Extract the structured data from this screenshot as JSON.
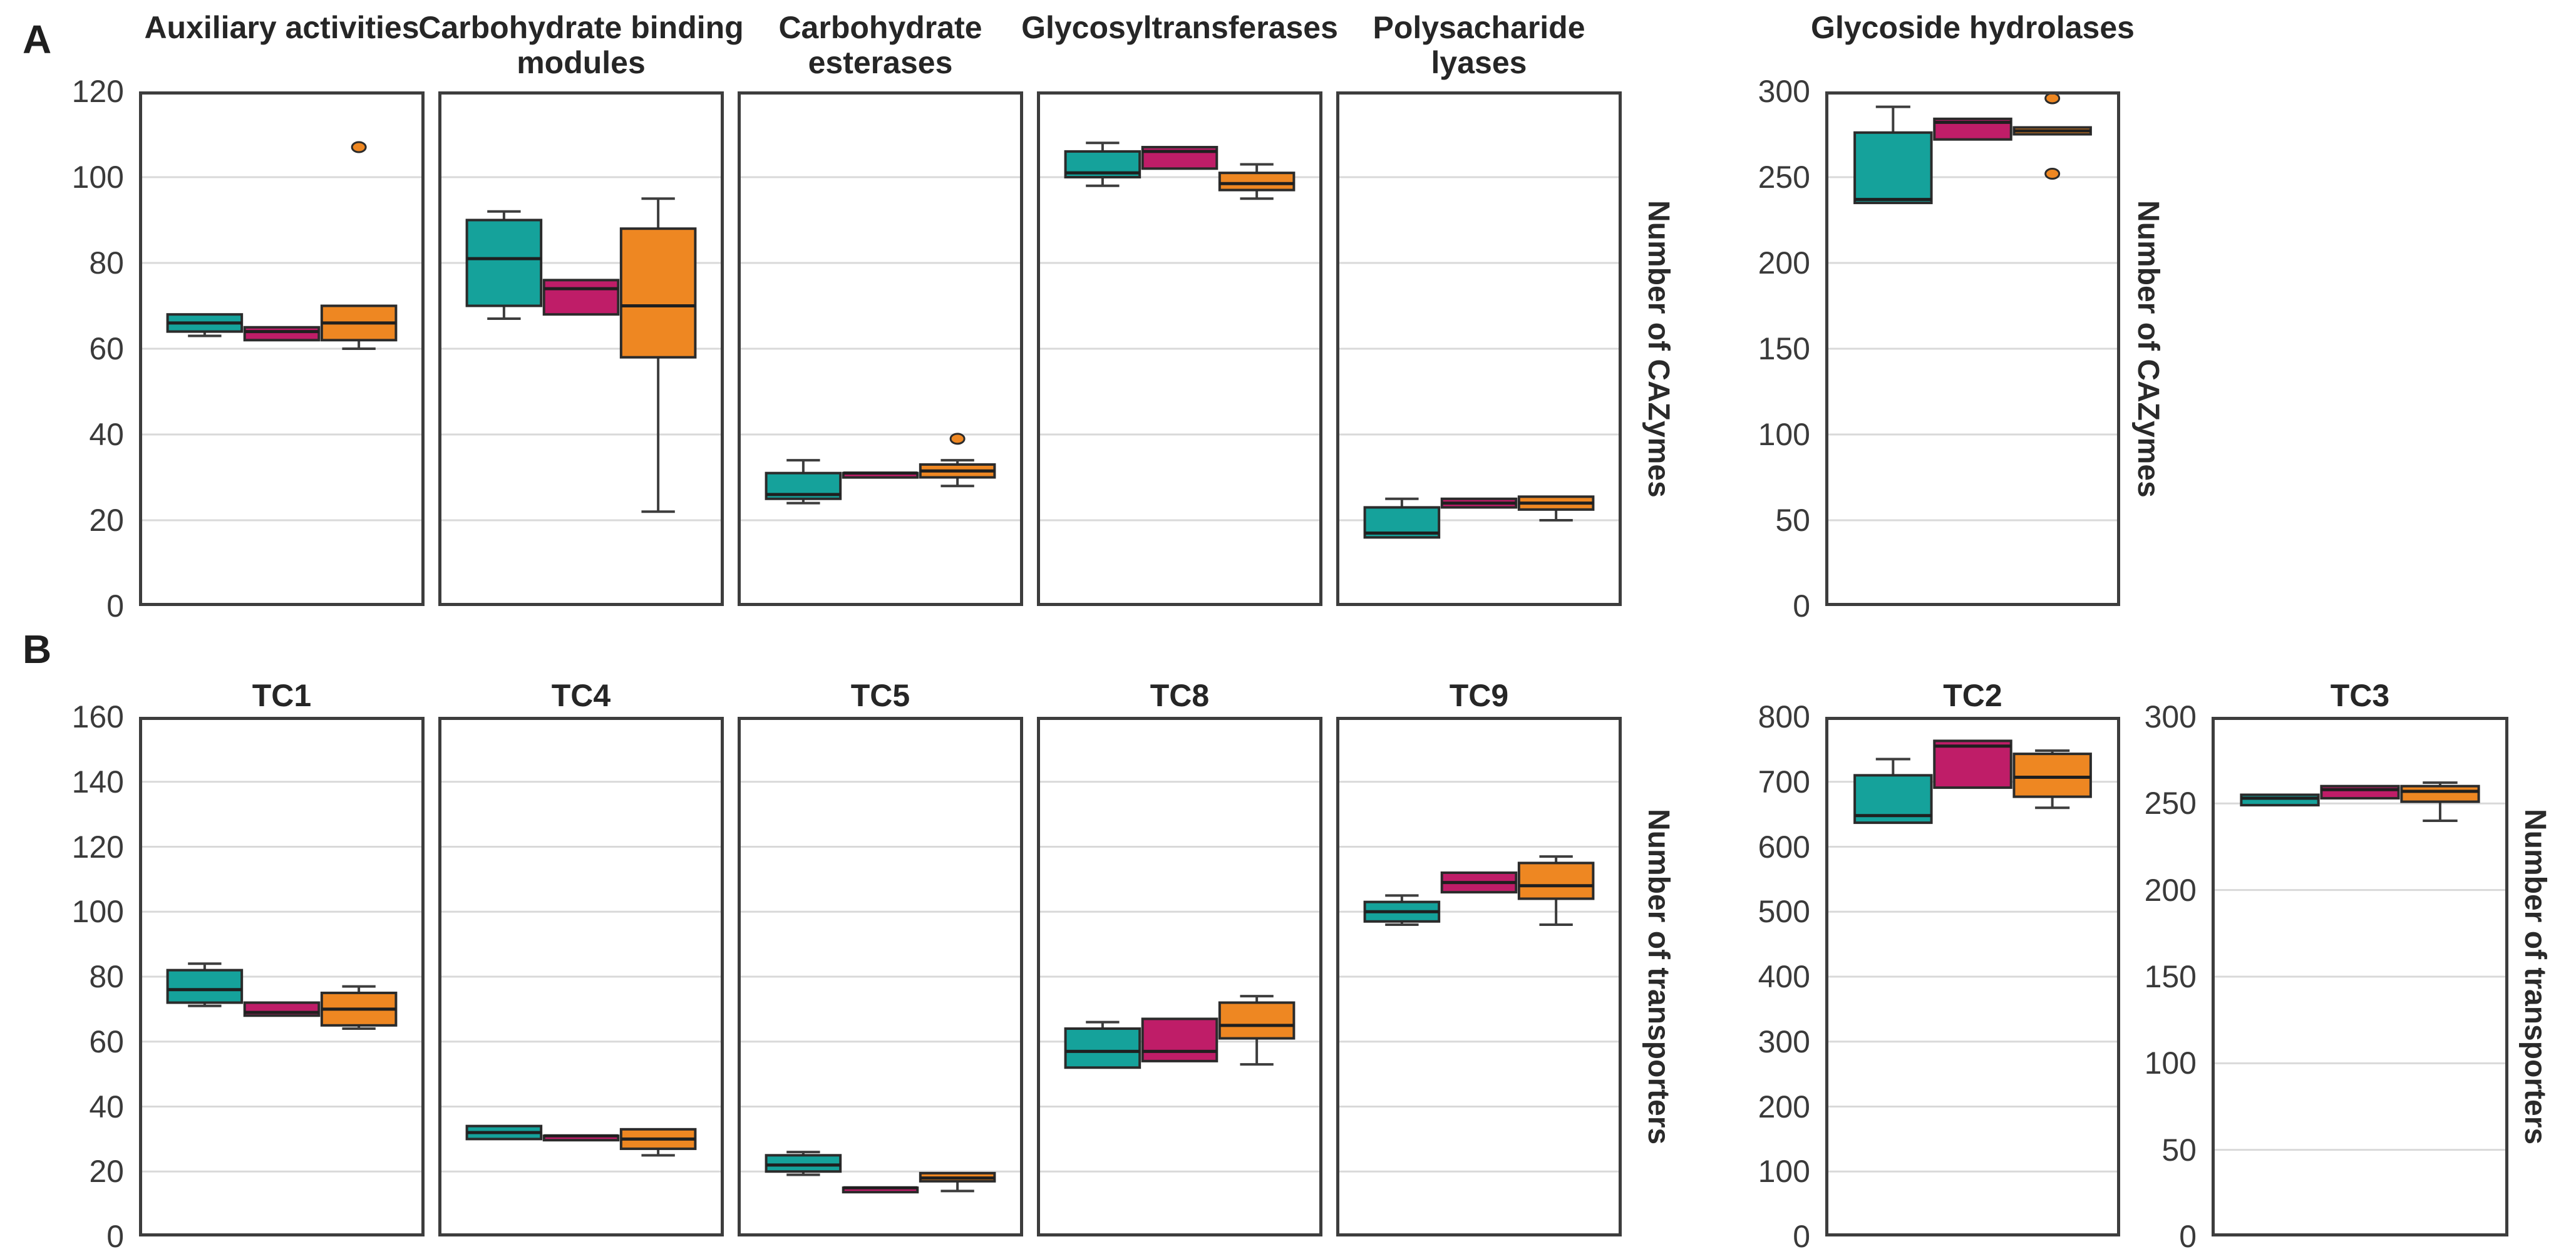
{
  "figure": {
    "background": "#ffffff"
  },
  "colors": {
    "teal": "#15a29b",
    "magenta": "#bf1d68",
    "orange": "#ee8722",
    "box_border": "#2b2b2b",
    "median": "#1f1f1f",
    "whisker": "#3d3d3d",
    "plot_border": "#3d3d3d",
    "gridline": "#d9d9d9",
    "tick_text": "#3a3a3a"
  },
  "chart_data": {
    "type": "boxplot",
    "legend": "none",
    "groups": [
      "teal",
      "magenta",
      "orange"
    ],
    "panels": [
      {
        "label": "A",
        "ylabel": "Number of CAZymes",
        "subplots": [
          {
            "title": "Auxiliary activities",
            "ylim": [
              0,
              120
            ],
            "tick_step": 20,
            "yticks": [
              0,
              20,
              40,
              60,
              80,
              100,
              120
            ],
            "show_ticks": true,
            "boxes": [
              {
                "group": "teal",
                "whislo": 63,
                "q1": 64,
                "med": 66,
                "q3": 68,
                "whishi": 68,
                "outliers": []
              },
              {
                "group": "magenta",
                "whislo": 62,
                "q1": 62,
                "med": 64,
                "q3": 65,
                "whishi": 65,
                "outliers": []
              },
              {
                "group": "orange",
                "whislo": 60,
                "q1": 62,
                "med": 66,
                "q3": 70,
                "whishi": 70,
                "outliers": [
                  107
                ]
              }
            ]
          },
          {
            "title": "Carbohydrate binding\nmodules",
            "ylim": [
              0,
              120
            ],
            "tick_step": 20,
            "yticks": [
              0,
              20,
              40,
              60,
              80,
              100,
              120
            ],
            "show_ticks": false,
            "boxes": [
              {
                "group": "teal",
                "whislo": 67,
                "q1": 70,
                "med": 81,
                "q3": 90,
                "whishi": 92,
                "outliers": []
              },
              {
                "group": "magenta",
                "whislo": 68,
                "q1": 68,
                "med": 74,
                "q3": 76,
                "whishi": 76,
                "outliers": []
              },
              {
                "group": "orange",
                "whislo": 22,
                "q1": 58,
                "med": 70,
                "q3": 88,
                "whishi": 95,
                "outliers": []
              }
            ]
          },
          {
            "title": "Carbohydrate\nesterases",
            "ylim": [
              0,
              120
            ],
            "tick_step": 20,
            "yticks": [
              0,
              20,
              40,
              60,
              80,
              100,
              120
            ],
            "show_ticks": false,
            "boxes": [
              {
                "group": "teal",
                "whislo": 24,
                "q1": 25,
                "med": 26,
                "q3": 31,
                "whishi": 34,
                "outliers": []
              },
              {
                "group": "magenta",
                "whislo": 31,
                "q1": 31,
                "med": 31,
                "q3": 31,
                "whishi": 31,
                "outliers": []
              },
              {
                "group": "orange",
                "whislo": 28,
                "q1": 30,
                "med": 31.5,
                "q3": 33,
                "whishi": 34,
                "outliers": [
                  39
                ]
              }
            ]
          },
          {
            "title": "Glycosyltransferases",
            "ylim": [
              0,
              120
            ],
            "tick_step": 20,
            "yticks": [
              0,
              20,
              40,
              60,
              80,
              100,
              120
            ],
            "show_ticks": false,
            "boxes": [
              {
                "group": "teal",
                "whislo": 98,
                "q1": 100,
                "med": 101,
                "q3": 106,
                "whishi": 108,
                "outliers": []
              },
              {
                "group": "magenta",
                "whislo": 102,
                "q1": 102,
                "med": 106,
                "q3": 107,
                "whishi": 107,
                "outliers": []
              },
              {
                "group": "orange",
                "whislo": 95,
                "q1": 97,
                "med": 98.5,
                "q3": 101,
                "whishi": 103,
                "outliers": []
              }
            ]
          },
          {
            "title": "Polysacharide\nlyases",
            "ylim": [
              0,
              120
            ],
            "tick_step": 20,
            "yticks": [
              0,
              20,
              40,
              60,
              80,
              100,
              120
            ],
            "show_ticks": false,
            "boxes": [
              {
                "group": "teal",
                "whislo": 16,
                "q1": 16,
                "med": 17,
                "q3": 23,
                "whishi": 25,
                "outliers": []
              },
              {
                "group": "magenta",
                "whislo": 23,
                "q1": 23,
                "med": 24,
                "q3": 25,
                "whishi": 25,
                "outliers": []
              },
              {
                "group": "orange",
                "whislo": 20,
                "q1": 22.5,
                "med": 24,
                "q3": 25.5,
                "whishi": 25.5,
                "outliers": []
              }
            ]
          },
          {
            "title": "Glycoside hydrolases",
            "ylim": [
              0,
              300
            ],
            "tick_step": 50,
            "yticks": [
              0,
              50,
              100,
              150,
              200,
              250,
              300
            ],
            "show_ticks": true,
            "boxes": [
              {
                "group": "teal",
                "whislo": 235,
                "q1": 235,
                "med": 237,
                "q3": 276,
                "whishi": 291,
                "outliers": []
              },
              {
                "group": "magenta",
                "whislo": 272,
                "q1": 272,
                "med": 282,
                "q3": 284,
                "whishi": 284,
                "outliers": []
              },
              {
                "group": "orange",
                "whislo": 275,
                "q1": 275,
                "med": 277,
                "q3": 279,
                "whishi": 279,
                "outliers": [
                  296,
                  252
                ]
              }
            ]
          }
        ]
      },
      {
        "label": "B",
        "ylabel": "Number of transporters",
        "subplots": [
          {
            "title": "TC1",
            "ylim": [
              0,
              160
            ],
            "tick_step": 20,
            "yticks": [
              0,
              20,
              40,
              60,
              80,
              100,
              120,
              140,
              160
            ],
            "show_ticks": true,
            "boxes": [
              {
                "group": "teal",
                "whislo": 71,
                "q1": 72,
                "med": 76,
                "q3": 82,
                "whishi": 84,
                "outliers": []
              },
              {
                "group": "magenta",
                "whislo": 68,
                "q1": 68,
                "med": 69,
                "q3": 72,
                "whishi": 72,
                "outliers": []
              },
              {
                "group": "orange",
                "whislo": 64,
                "q1": 65,
                "med": 70,
                "q3": 75,
                "whishi": 77,
                "outliers": []
              }
            ]
          },
          {
            "title": "TC4",
            "ylim": [
              0,
              160
            ],
            "tick_step": 20,
            "yticks": [
              0,
              20,
              40,
              60,
              80,
              100,
              120,
              140,
              160
            ],
            "show_ticks": false,
            "boxes": [
              {
                "group": "teal",
                "whislo": 30,
                "q1": 30,
                "med": 32,
                "q3": 34,
                "whishi": 34,
                "outliers": []
              },
              {
                "group": "magenta",
                "whislo": 31,
                "q1": 31,
                "med": 31,
                "q3": 31,
                "whishi": 31,
                "outliers": []
              },
              {
                "group": "orange",
                "whislo": 25,
                "q1": 27,
                "med": 30,
                "q3": 33,
                "whishi": 33,
                "outliers": []
              }
            ]
          },
          {
            "title": "TC5",
            "ylim": [
              0,
              160
            ],
            "tick_step": 20,
            "yticks": [
              0,
              20,
              40,
              60,
              80,
              100,
              120,
              140,
              160
            ],
            "show_ticks": false,
            "boxes": [
              {
                "group": "teal",
                "whislo": 19,
                "q1": 20,
                "med": 22,
                "q3": 25,
                "whishi": 26,
                "outliers": []
              },
              {
                "group": "magenta",
                "whislo": 15,
                "q1": 15,
                "med": 15,
                "q3": 15,
                "whishi": 15,
                "outliers": []
              },
              {
                "group": "orange",
                "whislo": 14,
                "q1": 17,
                "med": 18,
                "q3": 19.5,
                "whishi": 19.5,
                "outliers": []
              }
            ]
          },
          {
            "title": "TC8",
            "ylim": [
              0,
              160
            ],
            "tick_step": 20,
            "yticks": [
              0,
              20,
              40,
              60,
              80,
              100,
              120,
              140,
              160
            ],
            "show_ticks": false,
            "boxes": [
              {
                "group": "teal",
                "whislo": 52,
                "q1": 52,
                "med": 57,
                "q3": 64,
                "whishi": 66,
                "outliers": []
              },
              {
                "group": "magenta",
                "whislo": 54,
                "q1": 54,
                "med": 57,
                "q3": 67,
                "whishi": 67,
                "outliers": []
              },
              {
                "group": "orange",
                "whislo": 53,
                "q1": 61,
                "med": 65,
                "q3": 72,
                "whishi": 74,
                "outliers": []
              }
            ]
          },
          {
            "title": "TC9",
            "ylim": [
              0,
              160
            ],
            "tick_step": 20,
            "yticks": [
              0,
              20,
              40,
              60,
              80,
              100,
              120,
              140,
              160
            ],
            "show_ticks": false,
            "boxes": [
              {
                "group": "teal",
                "whislo": 96,
                "q1": 97,
                "med": 100,
                "q3": 103,
                "whishi": 105,
                "outliers": []
              },
              {
                "group": "magenta",
                "whislo": 106,
                "q1": 106,
                "med": 109,
                "q3": 112,
                "whishi": 112,
                "outliers": []
              },
              {
                "group": "orange",
                "whislo": 96,
                "q1": 104,
                "med": 108,
                "q3": 115,
                "whishi": 117,
                "outliers": []
              }
            ]
          },
          {
            "title": "TC2",
            "ylim": [
              0,
              800
            ],
            "tick_step": 100,
            "yticks": [
              0,
              100,
              200,
              300,
              400,
              500,
              600,
              700,
              800
            ],
            "show_ticks": true,
            "boxes": [
              {
                "group": "teal",
                "whislo": 637,
                "q1": 637,
                "med": 648,
                "q3": 710,
                "whishi": 735,
                "outliers": []
              },
              {
                "group": "magenta",
                "whislo": 691,
                "q1": 691,
                "med": 755,
                "q3": 763,
                "whishi": 763,
                "outliers": []
              },
              {
                "group": "orange",
                "whislo": 660,
                "q1": 677,
                "med": 707,
                "q3": 743,
                "whishi": 748,
                "outliers": []
              }
            ]
          },
          {
            "title": "TC3",
            "ylim": [
              0,
              300
            ],
            "tick_step": 50,
            "yticks": [
              0,
              50,
              100,
              150,
              200,
              250,
              300
            ],
            "show_ticks": true,
            "boxes": [
              {
                "group": "teal",
                "whislo": 249,
                "q1": 249,
                "med": 253,
                "q3": 255,
                "whishi": 255,
                "outliers": []
              },
              {
                "group": "magenta",
                "whislo": 253,
                "q1": 253,
                "med": 258,
                "q3": 260,
                "whishi": 260,
                "outliers": []
              },
              {
                "group": "orange",
                "whislo": 240,
                "q1": 251,
                "med": 257,
                "q3": 260,
                "whishi": 262,
                "outliers": []
              }
            ]
          }
        ]
      }
    ]
  }
}
